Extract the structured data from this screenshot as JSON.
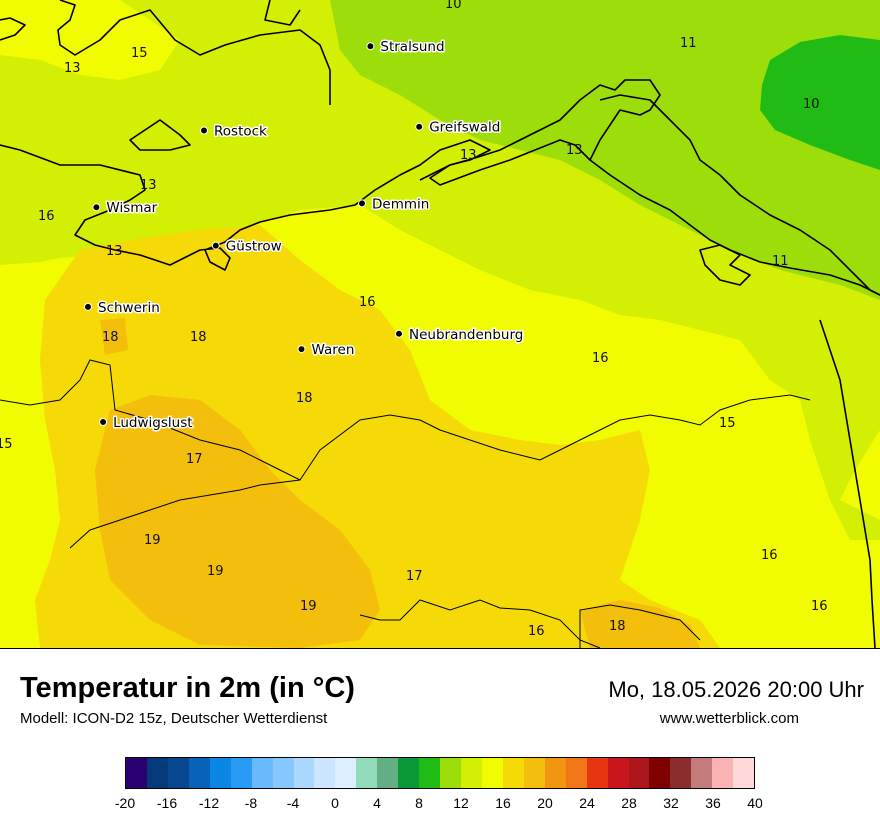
{
  "legend": {
    "title": "Temperatur in 2m (in °C)",
    "model": "Modell: ICON-D2 15z, Deutscher Wetterdienst",
    "datetime": "Mo, 18.05.2026 20:00 Uhr",
    "website": "www.wetterblick.com"
  },
  "colorbar": {
    "colors": [
      "#2b0070",
      "#053a7a",
      "#07478f",
      "#0762b8",
      "#0b86e4",
      "#2a9bf5",
      "#6ab9fd",
      "#86c7fd",
      "#acd8fd",
      "#cbe6fe",
      "#dceffe",
      "#92dcbc",
      "#63af83",
      "#099a37",
      "#21bb16",
      "#9ddd09",
      "#d2ef04",
      "#f2fc01",
      "#f5da07",
      "#f4be0d",
      "#f29612",
      "#f17617",
      "#e63510",
      "#c9161c",
      "#ae161e",
      "#7f0000",
      "#8c2d2d",
      "#c47b7b",
      "#fab3b4",
      "#ffd9da"
    ],
    "tick_labels": [
      "-20",
      "-16",
      "-12",
      "-8",
      "-4",
      "0",
      "4",
      "8",
      "12",
      "16",
      "20",
      "24",
      "28",
      "32",
      "36",
      "40"
    ]
  },
  "cities": [
    {
      "name": "Stralsund",
      "lon": 13.09,
      "lat": 54.31
    },
    {
      "name": "Greifswald",
      "lon": 13.38,
      "lat": 54.1
    },
    {
      "name": "Rostock",
      "lon": 12.1,
      "lat": 54.09
    },
    {
      "name": "Demmin",
      "lon": 13.04,
      "lat": 53.9
    },
    {
      "name": "Wismar",
      "lon": 11.46,
      "lat": 53.89
    },
    {
      "name": "Güstrow",
      "lon": 12.17,
      "lat": 53.79
    },
    {
      "name": "Schwerin",
      "lon": 11.41,
      "lat": 53.63
    },
    {
      "name": "Waren",
      "lon": 12.68,
      "lat": 53.52
    },
    {
      "name": "Neubrandenburg",
      "lon": 13.26,
      "lat": 53.56
    },
    {
      "name": "Ludwigslust",
      "lon": 11.5,
      "lat": 53.33
    }
  ],
  "isotherm_labels": [
    "10",
    "11",
    "10",
    "11",
    "13",
    "15",
    "13",
    "13",
    "13",
    "16",
    "13",
    "18",
    "18",
    "16",
    "16",
    "18",
    "15",
    "15",
    "17",
    "19",
    "19",
    "19",
    "17",
    "16",
    "18",
    "16",
    "16"
  ],
  "map_colors": {
    "t10": "#21bb16",
    "t11": "#9ddd09",
    "t13": "#d2ef04",
    "t15": "#f2fc01",
    "t17": "#f5da07",
    "t19": "#f4be0d",
    "coast": "#000000"
  }
}
